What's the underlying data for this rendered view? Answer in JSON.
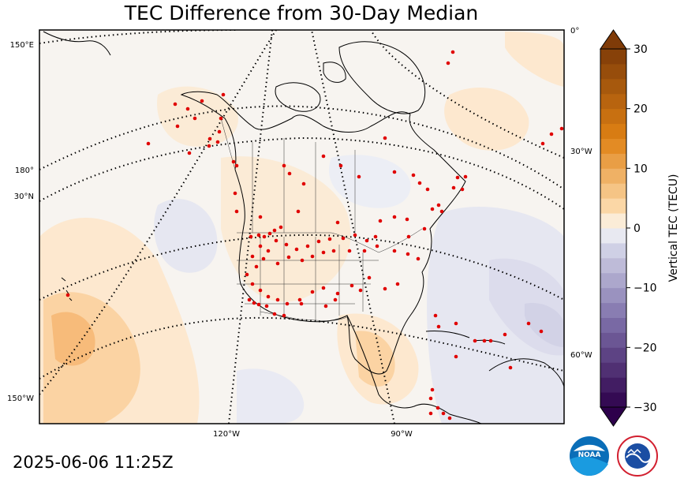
{
  "title": "TEC Difference from 30-Day Median",
  "timestamp": "2025-06-06 11:25Z",
  "colors": {
    "positive_max": "#7f3b08",
    "positive_mid": "#e08214",
    "positive_low": "#fee0b6",
    "neutral": "#f7f7f7",
    "negative_low": "#d8daeb",
    "negative_mid": "#8073ac",
    "negative_max": "#2d004b",
    "station_marker": "#e00000"
  },
  "logos": {
    "noaa": {
      "text": "NOAA",
      "icon": "noaa-logo"
    },
    "nws": {
      "text": "NATIONAL WEATHER SERVICE",
      "icon": "nws-logo"
    }
  },
  "chart_data": {
    "type": "heatmap",
    "title": "TEC Difference from 30-Day Median",
    "projection": "polar stereographic",
    "colorbar": {
      "label": "Vertical TEC (TECU)",
      "min": -30,
      "max": 30,
      "step": 2.5,
      "ticks": [
        30,
        20,
        10,
        0,
        -10,
        -20,
        -30
      ],
      "tick_labels": [
        "30",
        "20",
        "10",
        "0",
        "−10",
        "−20",
        "−30"
      ],
      "extend": "both"
    },
    "lon_labels_bottom": [
      "120°W",
      "90°W"
    ],
    "lon_labels_left": [
      "150°E",
      "180°",
      "150°W"
    ],
    "lat_labels_left": [
      "30°N"
    ],
    "lon_labels_right": [
      "0°",
      "30°W",
      "60°W"
    ],
    "grid": true,
    "stations_shown": true
  }
}
